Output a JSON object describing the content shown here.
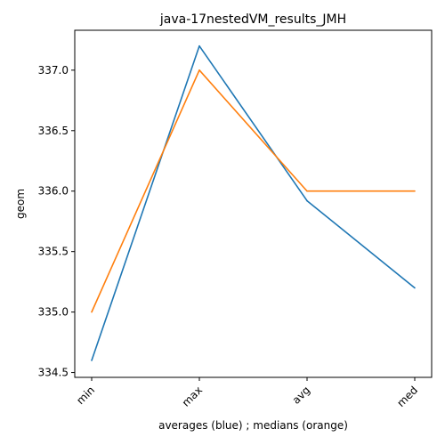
{
  "chart_data": {
    "type": "line",
    "title": "java-17nestedVM_results_JMH",
    "xlabel": "averages (blue) ; medians (orange)",
    "ylabel": "geom",
    "categories": [
      "min",
      "max",
      "avg",
      "med"
    ],
    "y_ticks": [
      "334.5",
      "335.0",
      "335.5",
      "336.0",
      "336.5",
      "337.0"
    ],
    "ylim": [
      334.46,
      337.33
    ],
    "grid": false,
    "legend": "none",
    "series": [
      {
        "color": "#1f77b4",
        "values": [
          334.6,
          337.2,
          335.92,
          335.2
        ]
      },
      {
        "color": "#ff7f0e",
        "values": [
          335.0,
          337.0,
          336.0,
          336.0
        ]
      }
    ]
  }
}
